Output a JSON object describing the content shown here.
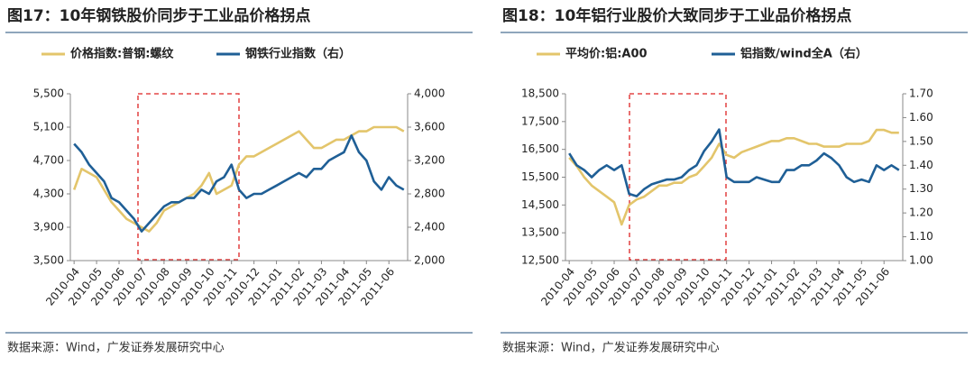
{
  "chart_data": [
    {
      "type": "line",
      "title": "图17：10年钢铁股价同步于工业品价格拐点",
      "source": "数据来源：Wind，广发证券发展研究中心",
      "categories": [
        "2010-04",
        null,
        null,
        "2010-05",
        null,
        null,
        "2010-06",
        null,
        null,
        "2010-07",
        null,
        null,
        "2010-08",
        null,
        null,
        "2010-09",
        null,
        null,
        "2010-10",
        null,
        null,
        "2010-11",
        null,
        null,
        "2010-12",
        null,
        null,
        "2011-01",
        null,
        null,
        "2011-02",
        null,
        null,
        "2011-03",
        null,
        null,
        "2011-04",
        null,
        null,
        "2011-05",
        null,
        null,
        "2011-06",
        null,
        null
      ],
      "series": [
        {
          "name": "价格指数:普钢:螺纹",
          "color": "#e3c56b",
          "axis": "y",
          "values": [
            4350,
            4600,
            4550,
            4500,
            4350,
            4200,
            4100,
            4000,
            3950,
            3900,
            3850,
            3950,
            4100,
            4150,
            4200,
            4250,
            4300,
            4400,
            4550,
            4300,
            4350,
            4400,
            4650,
            4750,
            4750,
            4800,
            4850,
            4900,
            4950,
            5000,
            5050,
            4950,
            4850,
            4850,
            4900,
            4950,
            4950,
            5000,
            5050,
            5050,
            5100,
            5100,
            5100,
            5100,
            5050
          ]
        },
        {
          "name": "钢铁行业指数（右）",
          "color": "#1f5f96",
          "axis": "y2",
          "values": [
            3400,
            3300,
            3150,
            3050,
            2950,
            2750,
            2700,
            2600,
            2500,
            2350,
            2450,
            2550,
            2650,
            2700,
            2700,
            2750,
            2750,
            2850,
            2800,
            2950,
            3000,
            3150,
            2850,
            2750,
            2800,
            2800,
            2850,
            2900,
            2950,
            3000,
            3050,
            3000,
            3100,
            3100,
            3200,
            3250,
            3300,
            3500,
            3300,
            3200,
            2950,
            2850,
            3000,
            2900,
            2850
          ]
        }
      ],
      "ylim": [
        3500,
        5500
      ],
      "yticks": [
        {
          "value": 3500,
          "label": "3,500"
        },
        {
          "value": 3900,
          "label": "3,900"
        },
        {
          "value": 4300,
          "label": "4,300"
        },
        {
          "value": 4700,
          "label": "4,700"
        },
        {
          "value": 5100,
          "label": "5,100"
        },
        {
          "value": 5500,
          "label": "5,500"
        }
      ],
      "y2lim": [
        2000,
        4000
      ],
      "y2ticks": [
        {
          "value": 2000,
          "label": "2,000"
        },
        {
          "value": 2400,
          "label": "2,400"
        },
        {
          "value": 2800,
          "label": "2,800"
        },
        {
          "value": 3200,
          "label": "3,200"
        },
        {
          "value": 3600,
          "label": "3,600"
        },
        {
          "value": 4000,
          "label": "4,000"
        }
      ]
    },
    {
      "type": "line",
      "title": "图18：10年铝行业股价大致同步于工业品价格拐点",
      "source": "数据来源：Wind，广发证券发展研究中心",
      "categories": [
        "2010-04",
        null,
        null,
        "2010-05",
        null,
        null,
        "2010-06",
        null,
        null,
        "2010-07",
        null,
        null,
        "2010-08",
        null,
        null,
        "2010-09",
        null,
        null,
        "2010-10",
        null,
        null,
        "2010-11",
        null,
        null,
        "2010-12",
        null,
        null,
        "2011-01",
        null,
        null,
        "2011-02",
        null,
        null,
        "2011-03",
        null,
        null,
        "2011-04",
        null,
        null,
        "2011-05",
        null,
        null,
        "2011-06",
        null,
        null
      ],
      "series": [
        {
          "name": "平均价:铝:A00",
          "color": "#e3c56b",
          "axis": "y",
          "values": [
            16200,
            15900,
            15500,
            15200,
            15000,
            14800,
            14600,
            13800,
            14500,
            14700,
            14800,
            15000,
            15200,
            15200,
            15300,
            15300,
            15500,
            15600,
            15900,
            16200,
            16700,
            16300,
            16200,
            16400,
            16500,
            16600,
            16700,
            16800,
            16800,
            16900,
            16900,
            16800,
            16700,
            16700,
            16600,
            16600,
            16600,
            16700,
            16700,
            16700,
            16800,
            17200,
            17200,
            17100,
            17100
          ]
        },
        {
          "name": "铝指数/wind全A（右）",
          "color": "#1f5f96",
          "axis": "y2",
          "values": [
            1.45,
            1.4,
            1.38,
            1.35,
            1.38,
            1.4,
            1.38,
            1.4,
            1.28,
            1.27,
            1.3,
            1.32,
            1.33,
            1.34,
            1.34,
            1.35,
            1.38,
            1.4,
            1.46,
            1.5,
            1.55,
            1.35,
            1.33,
            1.33,
            1.33,
            1.35,
            1.34,
            1.33,
            1.33,
            1.38,
            1.38,
            1.4,
            1.4,
            1.42,
            1.45,
            1.43,
            1.4,
            1.35,
            1.33,
            1.34,
            1.33,
            1.4,
            1.38,
            1.4,
            1.38
          ]
        }
      ],
      "ylim": [
        12500,
        18500
      ],
      "yticks": [
        {
          "value": 12500,
          "label": "12,500"
        },
        {
          "value": 13500,
          "label": "13,500"
        },
        {
          "value": 14500,
          "label": "14,500"
        },
        {
          "value": 15500,
          "label": "15,500"
        },
        {
          "value": 16500,
          "label": "16,500"
        },
        {
          "value": 17500,
          "label": "17,500"
        },
        {
          "value": 18500,
          "label": "18,500"
        }
      ],
      "y2lim": [
        1.0,
        1.7
      ],
      "y2ticks": [
        {
          "value": 1.0,
          "label": "1.00"
        },
        {
          "value": 1.1,
          "label": "1.10"
        },
        {
          "value": 1.2,
          "label": "1.20"
        },
        {
          "value": 1.3,
          "label": "1.30"
        },
        {
          "value": 1.4,
          "label": "1.40"
        },
        {
          "value": 1.5,
          "label": "1.50"
        },
        {
          "value": 1.6,
          "label": "1.60"
        },
        {
          "value": 1.7,
          "label": "1.70"
        }
      ]
    }
  ]
}
